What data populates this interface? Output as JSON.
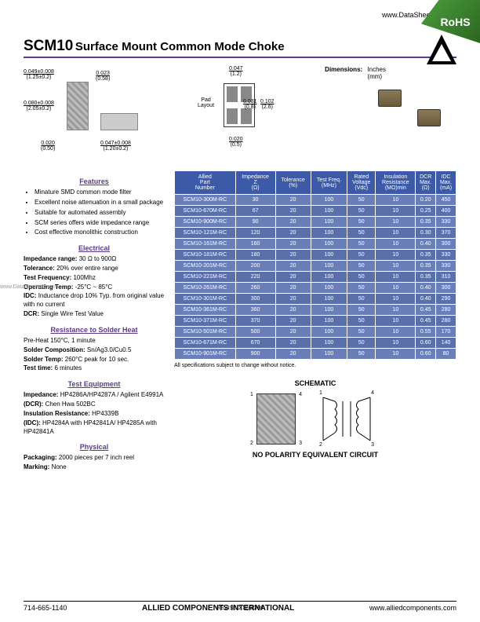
{
  "header": {
    "url": "www.DataSheet4U.com",
    "rohs": "RoHS",
    "title_main": "SCM10",
    "title_sub": "Surface Mount Common Mode Choke"
  },
  "dimensions": {
    "heading": "Dimensions:",
    "units": "Inches\n(mm)",
    "d1": "0.049±0.008",
    "d1m": "(1.25±0.2)",
    "d2": "0.080±0.008",
    "d2m": "(2.05±0.2)",
    "d3": "0.020",
    "d3m": "(0.50)",
    "d4": "0.023",
    "d4m": "(0.58)",
    "d5": "0.047±0.008",
    "d5m": "(1.20±0.2)",
    "d6": "0.047",
    "d6m": "(1.2)",
    "d7": "0.031",
    "d7m": "(0.8)",
    "d8": "0.102",
    "d8m": "(2.6)",
    "d9": "0.020",
    "d9m": "(0.5)",
    "pad": "Pad\nLayout"
  },
  "features": {
    "title": "Features",
    "items": [
      "Minature SMD common mode filter",
      "Excellent noise attenuation in a small package",
      "Suitable for automated assembly",
      "SCM series offers wide impedance range",
      "Cost effective monolithic construction"
    ]
  },
  "electrical": {
    "title": "Electrical",
    "imp_range": "Impedance range:",
    "imp_range_v": "30 Ω to 900Ω",
    "tol": "Tolerance:",
    "tol_v": "20% over entire range",
    "tf": "Test Frequency:",
    "tf_v": "100Mhz",
    "ot": "Operating Temp:",
    "ot_v": "-25°C ~ 85°C",
    "idc": "IDC:",
    "idc_v": "Inductance drop 10% Typ. from original value with no current",
    "dcr": "DCR:",
    "dcr_v": "Single Wire Test Value"
  },
  "solder": {
    "title": "Resistance to Solder Heat",
    "l1": "Pre-Heat 150°C, 1 minute",
    "l2b": "Solder Composition:",
    "l2v": "Sn/Ag3.0/Cu0.5",
    "l3b": "Solder Temp:",
    "l3v": "260°C peak for 10 sec.",
    "l4b": "Test time:",
    "l4v": "6 minutes"
  },
  "equipment": {
    "title": "Test Equipment",
    "l1b": "Impedance:",
    "l1v": "HP4286A/HP4287A / Agilent E4991A",
    "l2b": "(DCR):",
    "l2v": "Chen Hwa 502BC",
    "l3b": "Insulation Resistance:",
    "l3v": "HP4339B",
    "l4b": "(IDC):",
    "l4v": "HP4284A with HP42841A/ HP4285A with HP42841A"
  },
  "physical": {
    "title": "Physical",
    "l1b": "Packaging:",
    "l1v": "2000 pieces per 7 inch reel",
    "l2b": "Marking:",
    "l2v": "None"
  },
  "table": {
    "headers": [
      "Allied\nPart\nNumber",
      "Impedance\nZ\n(Ω)",
      "Tolerance\n(%)",
      "Test Freq.\n(MHz)",
      "Rated\nVoltage\n(Vdc)",
      "Insulation\nResistance\n(MΩ)min",
      "DCR\nMax.\n(Ω)",
      "IDC\nMax.\n(mA)"
    ],
    "rows": [
      [
        "SCM10-300M-RC",
        "30",
        "20",
        "100",
        "50",
        "10",
        "0.20",
        "450"
      ],
      [
        "SCM10-670M-RC",
        "67",
        "20",
        "100",
        "50",
        "10",
        "0.25",
        "400"
      ],
      [
        "SCM10-900M-RC",
        "90",
        "20",
        "100",
        "50",
        "10",
        "0.35",
        "330"
      ],
      [
        "SCM10-121M-RC",
        "120",
        "20",
        "100",
        "50",
        "10",
        "0.30",
        "370"
      ],
      [
        "SCM10-161M-RC",
        "160",
        "20",
        "100",
        "50",
        "10",
        "0.40",
        "300"
      ],
      [
        "SCM10-181M-RC",
        "180",
        "20",
        "100",
        "50",
        "10",
        "0.35",
        "330"
      ],
      [
        "SCM10-201M-RC",
        "200",
        "20",
        "100",
        "50",
        "10",
        "0.35",
        "330"
      ],
      [
        "SCM10-221M-RC",
        "220",
        "20",
        "100",
        "50",
        "10",
        "0.35",
        "310"
      ],
      [
        "SCM10-261M-RC",
        "260",
        "20",
        "100",
        "50",
        "10",
        "0.40",
        "300"
      ],
      [
        "SCM10-301M-RC",
        "300",
        "20",
        "100",
        "50",
        "10",
        "0.40",
        "290"
      ],
      [
        "SCM10-361M-RC",
        "360",
        "20",
        "100",
        "50",
        "10",
        "0.45",
        "280"
      ],
      [
        "SCM10-371M-RC",
        "370",
        "20",
        "100",
        "50",
        "10",
        "0.45",
        "280"
      ],
      [
        "SCM10-501M-RC",
        "500",
        "20",
        "100",
        "50",
        "10",
        "0.55",
        "170"
      ],
      [
        "SCM10-671M-RC",
        "670",
        "20",
        "100",
        "50",
        "10",
        "0.60",
        "140"
      ],
      [
        "SCM10-901M-RC",
        "900",
        "20",
        "100",
        "50",
        "10",
        "0.60",
        "80"
      ]
    ],
    "note": "All specifications subject to change without notice."
  },
  "schematic": {
    "title": "SCHEMATIC",
    "pins": [
      "1",
      "2",
      "3",
      "4"
    ],
    "caption": "NO POLARITY EQUIVALENT CIRCUIT"
  },
  "footer": {
    "phone": "714-665-1140",
    "company": "ALLIED COMPONENTS INTERNATIONAL",
    "web": "www.alliedcomponents.com",
    "revised": "REVISED 12/30/08"
  },
  "watermark": "www.DataSheet4U.com"
}
